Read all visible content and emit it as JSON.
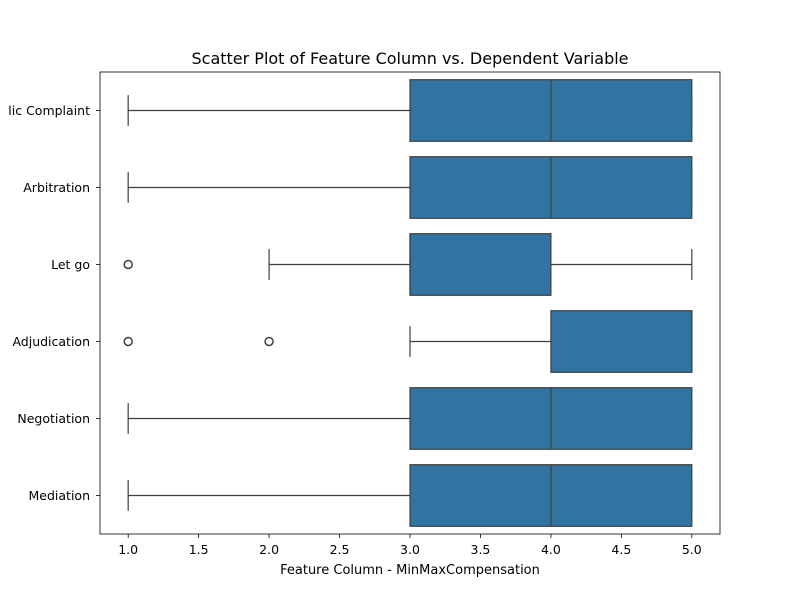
{
  "chart_data": {
    "type": "box",
    "orientation": "horizontal",
    "title": "Scatter Plot of Feature Column vs. Dependent Variable",
    "xlabel": "Feature Column - MinMaxCompensation",
    "ylabel": "",
    "xlim": [
      0.8,
      5.2
    ],
    "x_ticks": [
      "1.0",
      "1.5",
      "2.0",
      "2.5",
      "3.0",
      "3.5",
      "4.0",
      "4.5",
      "5.0"
    ],
    "categories": [
      {
        "name": "Public Complaint",
        "label": "lic Complaint",
        "whisker_low": 1,
        "q1": 3,
        "median": 4,
        "q3": 5,
        "whisker_high": 5,
        "outliers": []
      },
      {
        "name": "Arbitration",
        "label": "Arbitration",
        "whisker_low": 1,
        "q1": 3,
        "median": 4,
        "q3": 5,
        "whisker_high": 5,
        "outliers": []
      },
      {
        "name": "Let go",
        "label": "Let go",
        "whisker_low": 2,
        "q1": 3,
        "median": 3,
        "q3": 4,
        "whisker_high": 5,
        "outliers": [
          1
        ]
      },
      {
        "name": "Adjudication",
        "label": "Adjudication",
        "whisker_low": 3,
        "q1": 4,
        "median": 5,
        "q3": 5,
        "whisker_high": 5,
        "outliers": [
          1,
          2
        ]
      },
      {
        "name": "Negotiation",
        "label": "Negotiation",
        "whisker_low": 1,
        "q1": 3,
        "median": 4,
        "q3": 5,
        "whisker_high": 5,
        "outliers": []
      },
      {
        "name": "Mediation",
        "label": "Mediation",
        "whisker_low": 1,
        "q1": 3,
        "median": 4,
        "q3": 5,
        "whisker_high": 5,
        "outliers": []
      }
    ],
    "box_color": "#3274a1",
    "edge_color": "#3f3f3f",
    "grid": false,
    "legend": "none"
  }
}
